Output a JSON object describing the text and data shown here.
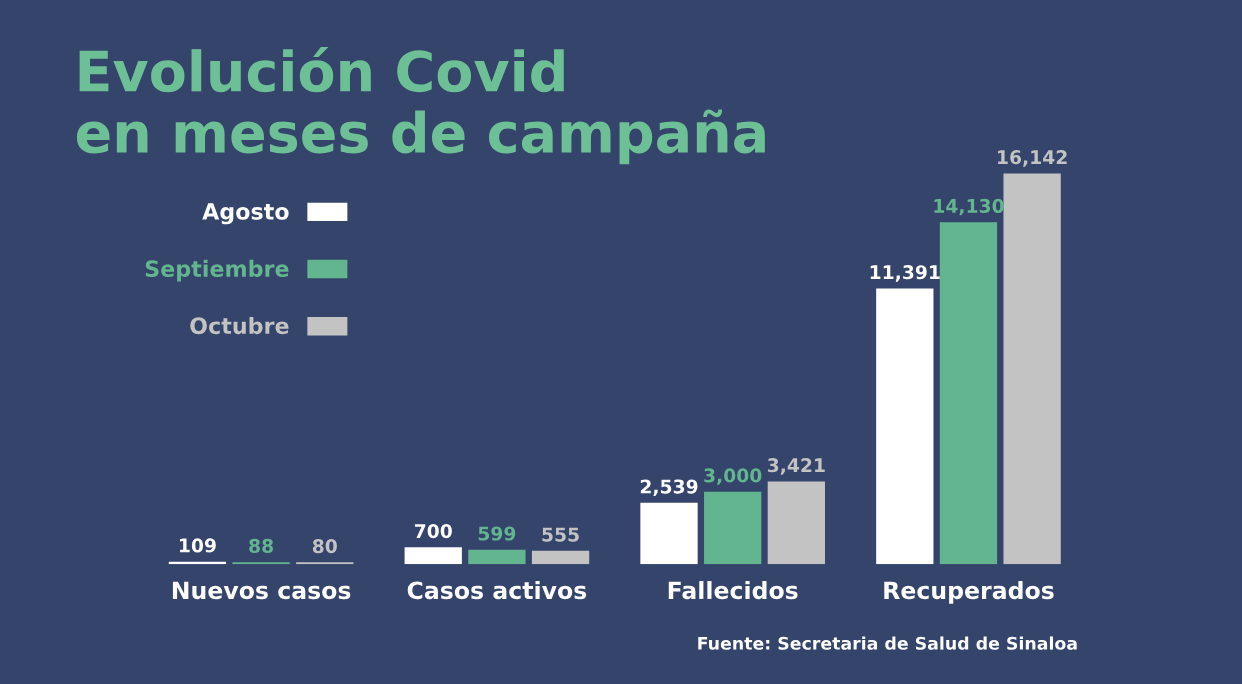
{
  "chart_data": {
    "type": "bar",
    "title": "Evolución Covid\nen meses de campaña",
    "categories": [
      "Nuevos casos",
      "Casos activos",
      "Fallecidos",
      "Recuperados"
    ],
    "series": [
      {
        "name": "Agosto",
        "color": "#ffffff",
        "values": [
          109,
          700,
          2539,
          11391
        ],
        "value_labels": [
          "109",
          "700",
          "2,539",
          "11,391"
        ]
      },
      {
        "name": "Septiembre",
        "color": "#63b58f",
        "values": [
          88,
          599,
          3000,
          14130
        ],
        "value_labels": [
          "88",
          "599",
          "3,000",
          "14,130"
        ]
      },
      {
        "name": "Octubre",
        "color": "#c3c3c3",
        "values": [
          80,
          555,
          3421,
          16142
        ],
        "value_labels": [
          "80",
          "555",
          "3,421",
          "16,142"
        ]
      }
    ],
    "legend": "top left",
    "annotations": [
      "Fuente: Secretaria de Salud de Sinaloa"
    ]
  }
}
